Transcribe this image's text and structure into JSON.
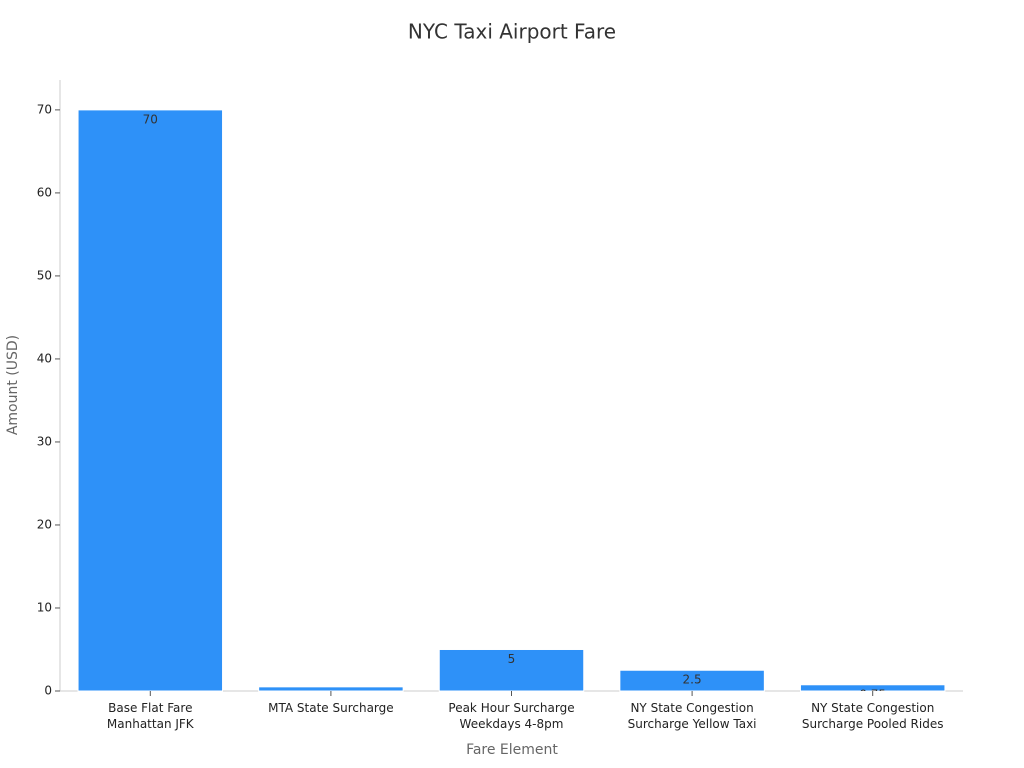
{
  "chart_data": {
    "type": "bar",
    "title": "NYC Taxi Airport Fare",
    "x_label": "Fare Element",
    "y_label": "Amount (USD)",
    "categories": [
      [
        "Base Flat Fare",
        "Manhattan JFK"
      ],
      [
        "MTA State Surcharge"
      ],
      [
        "Peak Hour Surcharge",
        "Weekdays 4-8pm"
      ],
      [
        "NY State Congestion",
        "Surcharge Yellow Taxi"
      ],
      [
        "NY State Congestion",
        "Surcharge Pooled Rides"
      ]
    ],
    "values": [
      70,
      0.5,
      5,
      2.5,
      0.75
    ],
    "color": "#2e91f8",
    "ylim": [
      0,
      73.6
    ],
    "yticks": [
      0,
      10,
      20,
      30,
      40,
      50,
      60,
      70
    ],
    "grid": false
  }
}
